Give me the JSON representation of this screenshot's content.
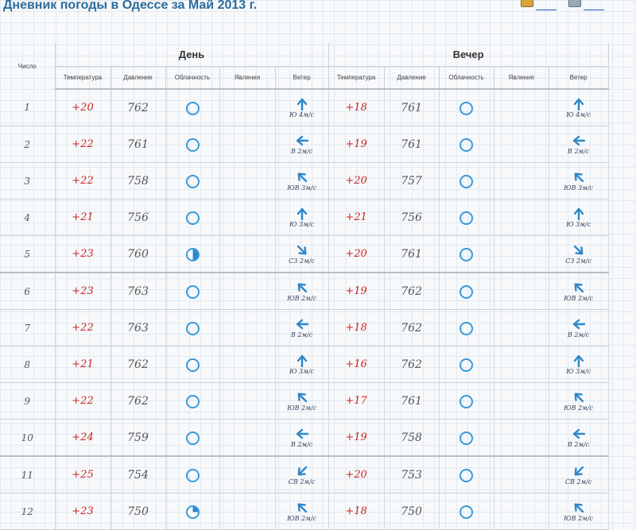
{
  "page": {
    "title": "Дневник погоды в Одессе за Май 2013 г."
  },
  "colors": {
    "title": "#2d6c9c",
    "temperature": "#cc2222",
    "cloud_icon": "#3a9ad9",
    "wind_arrow": "#2f86c8"
  },
  "table": {
    "number_header": "Число",
    "group_day": "День",
    "group_evening": "Вечер",
    "columns": [
      "Температура",
      "Давление",
      "Облачность",
      "Явления",
      "Ветер"
    ],
    "rows": [
      {
        "num": "1",
        "day": {
          "temp": "+20",
          "pres": "762",
          "cloud": "clear",
          "wind_icon": "arrow-up-icon",
          "wind": "Ю 4м/с"
        },
        "eve": {
          "temp": "+18",
          "pres": "761",
          "cloud": "clear",
          "wind_icon": "arrow-up-icon",
          "wind": "Ю 4м/с"
        }
      },
      {
        "num": "2",
        "day": {
          "temp": "+22",
          "pres": "761",
          "cloud": "clear",
          "wind_icon": "arrow-left-icon",
          "wind": "В 2м/с"
        },
        "eve": {
          "temp": "+19",
          "pres": "761",
          "cloud": "clear",
          "wind_icon": "arrow-left-icon",
          "wind": "В 2м/с"
        }
      },
      {
        "num": "3",
        "day": {
          "temp": "+22",
          "pres": "758",
          "cloud": "clear",
          "wind_icon": "arrow-up-left-icon",
          "wind": "ЮВ 3м/с"
        },
        "eve": {
          "temp": "+20",
          "pres": "757",
          "cloud": "clear",
          "wind_icon": "arrow-up-left-icon",
          "wind": "ЮВ 3м/с"
        }
      },
      {
        "num": "4",
        "day": {
          "temp": "+21",
          "pres": "756",
          "cloud": "clear",
          "wind_icon": "arrow-up-icon",
          "wind": "Ю 3м/с"
        },
        "eve": {
          "temp": "+21",
          "pres": "756",
          "cloud": "clear",
          "wind_icon": "arrow-up-icon",
          "wind": "Ю 3м/с"
        }
      },
      {
        "num": "5",
        "day": {
          "temp": "+23",
          "pres": "760",
          "cloud": "half",
          "wind_icon": "arrow-down-right-icon",
          "wind": "СЗ 2м/с"
        },
        "eve": {
          "temp": "+20",
          "pres": "761",
          "cloud": "clear",
          "wind_icon": "arrow-down-right-icon",
          "wind": "СЗ 2м/с"
        }
      },
      {
        "num": "6",
        "day": {
          "temp": "+23",
          "pres": "763",
          "cloud": "clear",
          "wind_icon": "arrow-up-left-icon",
          "wind": "ЮВ 2м/с"
        },
        "eve": {
          "temp": "+19",
          "pres": "762",
          "cloud": "clear",
          "wind_icon": "arrow-up-left-icon",
          "wind": "ЮВ 2м/с"
        }
      },
      {
        "num": "7",
        "day": {
          "temp": "+22",
          "pres": "763",
          "cloud": "clear",
          "wind_icon": "arrow-left-icon",
          "wind": "В 2м/с"
        },
        "eve": {
          "temp": "+18",
          "pres": "762",
          "cloud": "clear",
          "wind_icon": "arrow-left-icon",
          "wind": "В 2м/с"
        }
      },
      {
        "num": "8",
        "day": {
          "temp": "+21",
          "pres": "762",
          "cloud": "clear",
          "wind_icon": "arrow-up-icon",
          "wind": "Ю 3м/с"
        },
        "eve": {
          "temp": "+16",
          "pres": "762",
          "cloud": "clear",
          "wind_icon": "arrow-up-icon",
          "wind": "Ю 3м/с"
        }
      },
      {
        "num": "9",
        "day": {
          "temp": "+22",
          "pres": "762",
          "cloud": "clear",
          "wind_icon": "arrow-up-left-icon",
          "wind": "ЮВ 2м/с"
        },
        "eve": {
          "temp": "+17",
          "pres": "761",
          "cloud": "clear",
          "wind_icon": "arrow-up-left-icon",
          "wind": "ЮВ 2м/с"
        }
      },
      {
        "num": "10",
        "day": {
          "temp": "+24",
          "pres": "759",
          "cloud": "clear",
          "wind_icon": "arrow-left-icon",
          "wind": "В 2м/с"
        },
        "eve": {
          "temp": "+19",
          "pres": "758",
          "cloud": "clear",
          "wind_icon": "arrow-left-icon",
          "wind": "В 2м/с"
        }
      },
      {
        "num": "11",
        "day": {
          "temp": "+25",
          "pres": "754",
          "cloud": "clear",
          "wind_icon": "arrow-down-left-icon",
          "wind": "СВ 2м/с"
        },
        "eve": {
          "temp": "+20",
          "pres": "753",
          "cloud": "clear",
          "wind_icon": "arrow-down-left-icon",
          "wind": "СВ 2м/с"
        }
      },
      {
        "num": "12",
        "day": {
          "temp": "+23",
          "pres": "750",
          "cloud": "quarter",
          "wind_icon": "arrow-up-left-icon",
          "wind": "ЮВ 2м/с"
        },
        "eve": {
          "temp": "+18",
          "pres": "750",
          "cloud": "clear",
          "wind_icon": "arrow-up-left-icon",
          "wind": "ЮВ 2м/с"
        }
      }
    ]
  }
}
